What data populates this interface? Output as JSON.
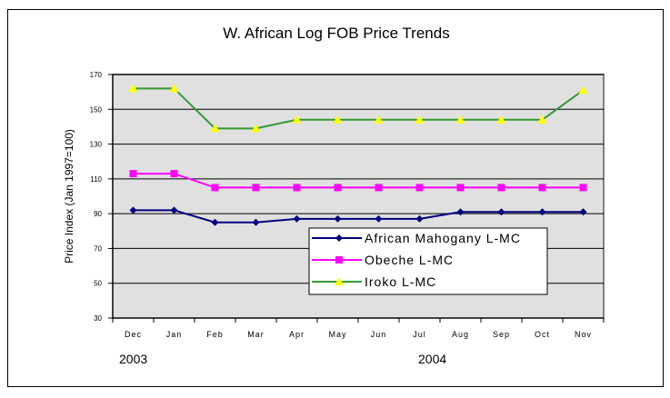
{
  "chart_data": {
    "type": "line",
    "title": "W. African Log FOB Price Trends",
    "ylabel": "Price Index (Jan 1997=100)",
    "xlabel": "",
    "categories": [
      "Dec",
      "Jan",
      "Feb",
      "Mar",
      "Apr",
      "May",
      "Jun",
      "Jul",
      "Aug",
      "Sep",
      "Oct",
      "Nov"
    ],
    "year_labels": [
      "2003",
      "2004"
    ],
    "ylim": [
      30,
      170
    ],
    "yticks": [
      30,
      50,
      70,
      90,
      110,
      130,
      150,
      170
    ],
    "grid": true,
    "legend": "center-right",
    "plot_background": "#e0e0e0",
    "series": [
      {
        "name": "African Mahogany L-MC",
        "color": "#000080",
        "marker": "diamond",
        "values": [
          92,
          92,
          85,
          85,
          87,
          87,
          87,
          87,
          91,
          91,
          91,
          91
        ]
      },
      {
        "name": "Obeche L-MC",
        "color": "#ff00ff",
        "marker": "square",
        "values": [
          113,
          113,
          105,
          105,
          105,
          105,
          105,
          105,
          105,
          105,
          105,
          105
        ]
      },
      {
        "name": "Iroko L-MC",
        "color": "#339933",
        "marker": "triangle",
        "marker_color": "#ffff00",
        "values": [
          162,
          162,
          139,
          139,
          144,
          144,
          144,
          144,
          144,
          144,
          144,
          161
        ]
      }
    ]
  }
}
